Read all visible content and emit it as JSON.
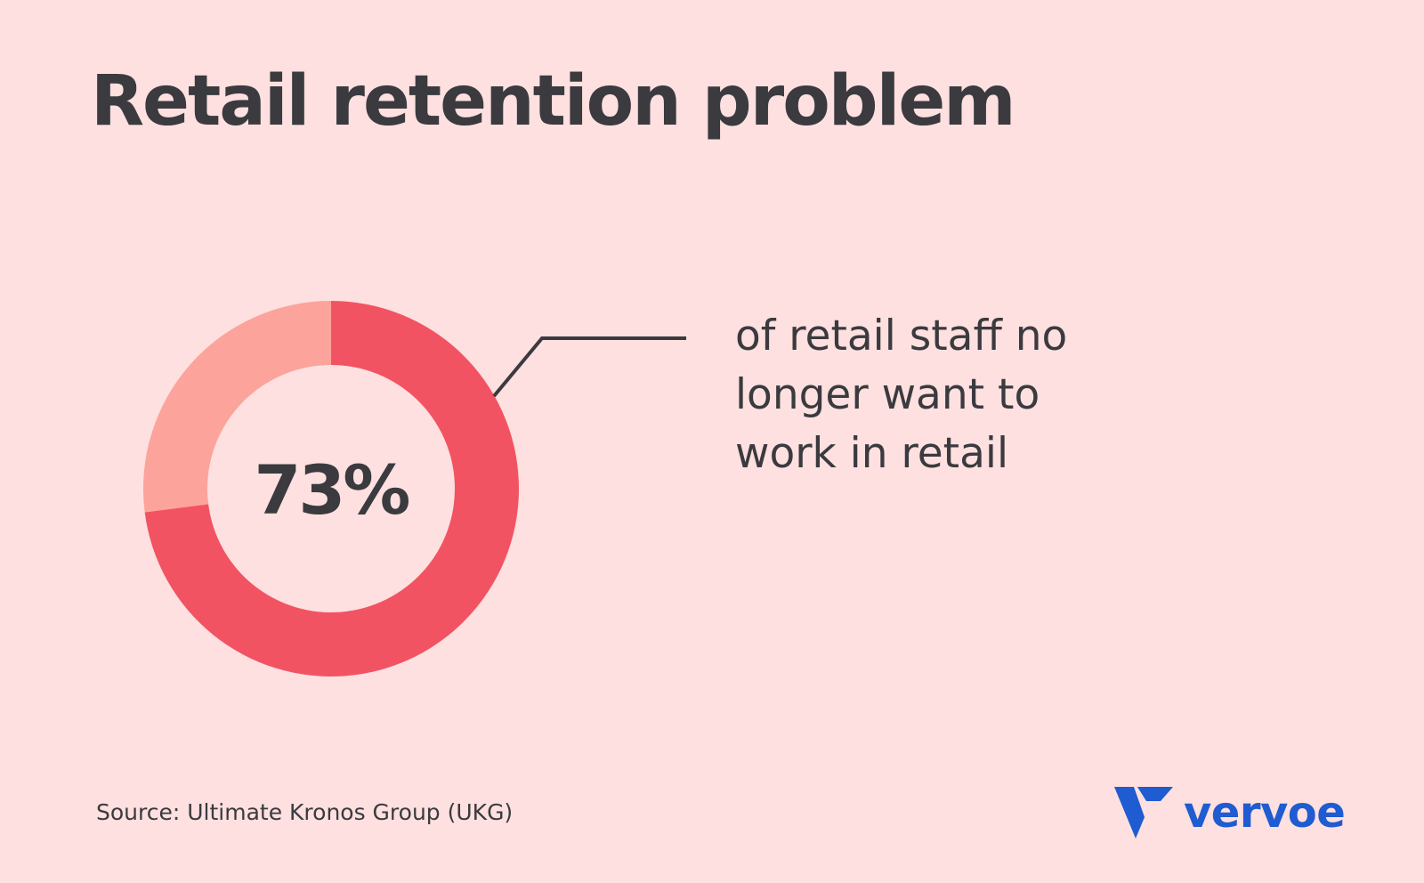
{
  "title": "Retail retention problem",
  "chart_data": {
    "type": "pie",
    "style": "donut",
    "slices": [
      {
        "value": 73,
        "color": "#f25363"
      },
      {
        "value": 27,
        "color": "#fca39c"
      }
    ],
    "center_label": "73%",
    "callout_lines": [
      "of retail staff no",
      "longer want to",
      "work in retail"
    ]
  },
  "source": "Source: Ultimate Kronos Group (UKG)",
  "logo": {
    "text": "vervoe",
    "color": "#1f5bd1"
  },
  "colors": {
    "background": "#fde0df",
    "text": "#3a3a3f",
    "primary_slice": "#f25363",
    "secondary_slice": "#fca39c"
  }
}
